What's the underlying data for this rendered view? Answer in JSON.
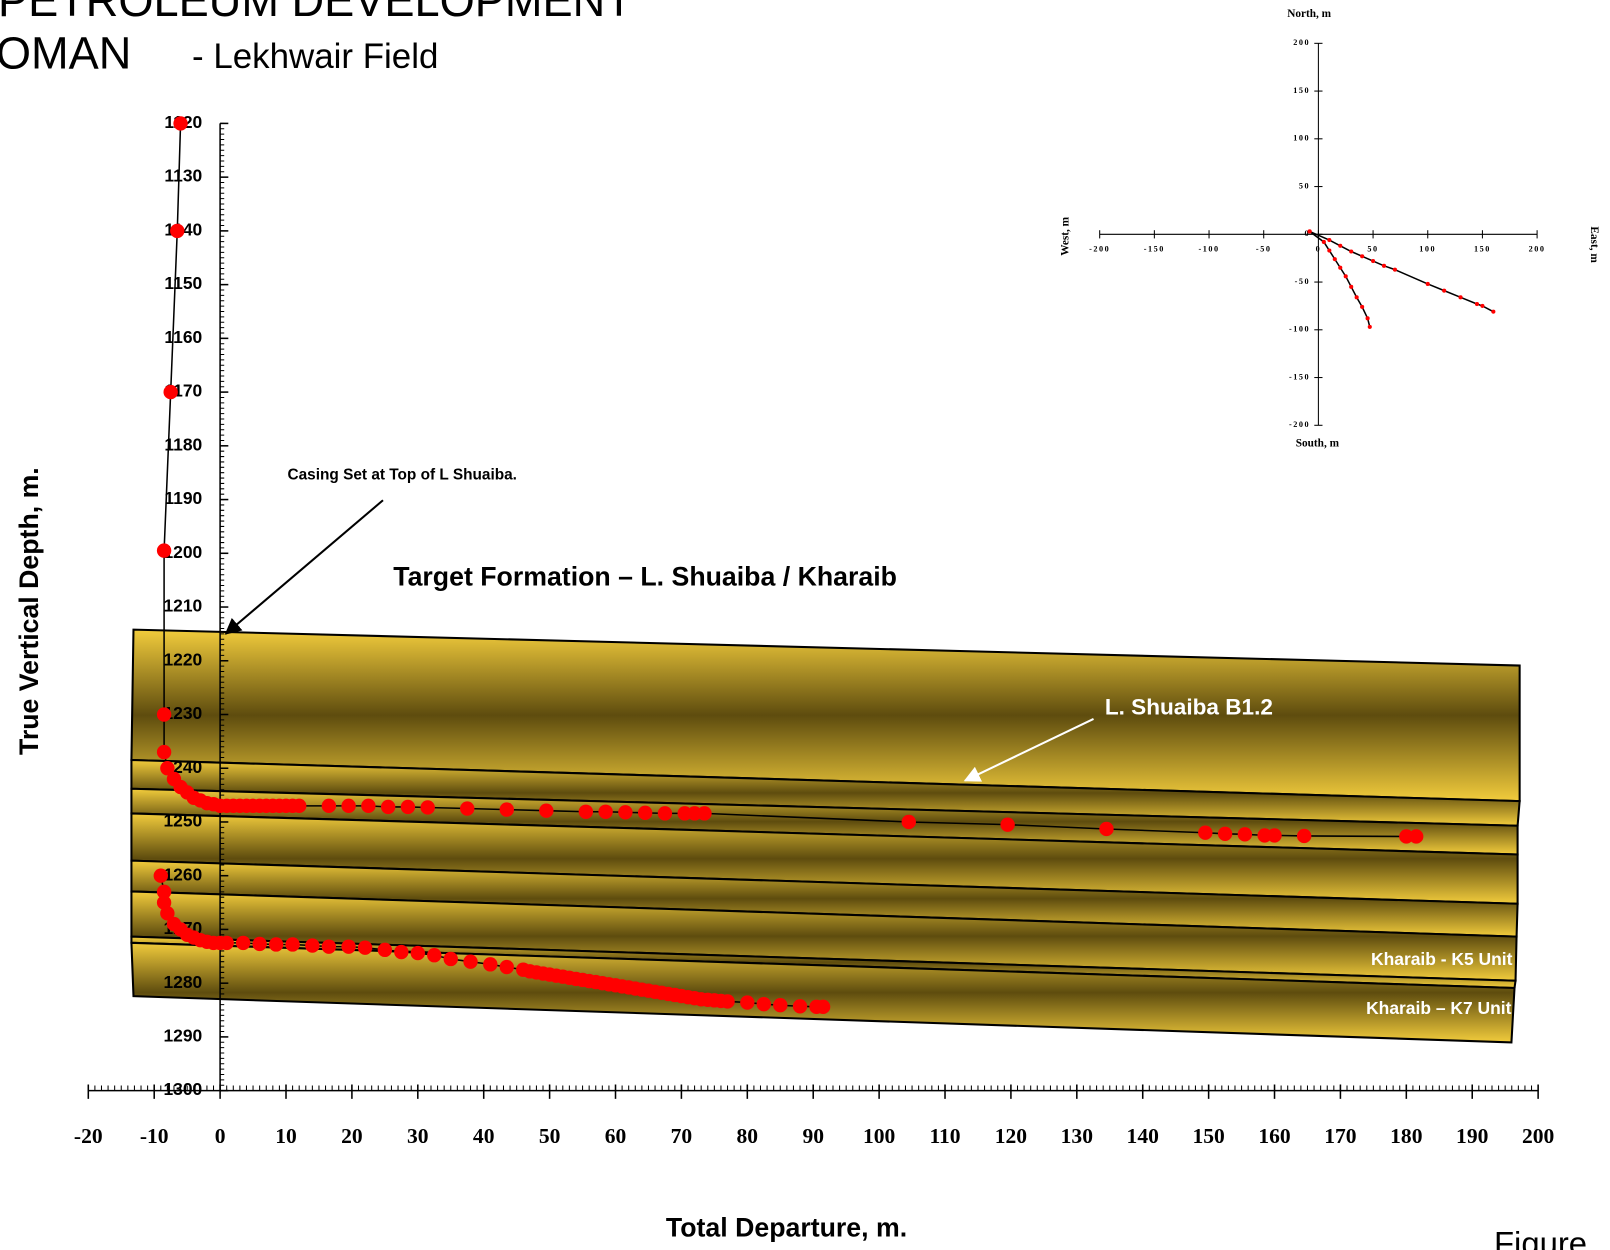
{
  "header": {
    "line1": "PETROLEUM DEVELOPMENT",
    "line2": "OMAN",
    "line3": "- Lekhwair Field"
  },
  "footer": "Figure",
  "chart_data": [
    {
      "type": "scatter",
      "x_label": "Total Departure, m.",
      "y_label": "True Vertical Depth, m.",
      "annotations": [
        "Casing Set at Top of L Shuaiba.",
        "Target Formation – L. Shuaiba / Kharaib",
        "L. Shuaiba B1.2",
        "Kharaib - K5 Unit",
        "Kharaib – K7 Unit"
      ],
      "xlim": [
        -20,
        200
      ],
      "ylim": [
        1120,
        1300
      ],
      "y_inverted": true,
      "xticks": [
        -20,
        -10,
        0,
        10,
        20,
        30,
        40,
        50,
        60,
        70,
        80,
        90,
        100,
        110,
        120,
        130,
        140,
        150,
        160,
        170,
        180,
        190,
        200
      ],
      "yticks": [
        1120,
        1130,
        1140,
        1150,
        1160,
        1170,
        1180,
        1190,
        1200,
        1210,
        1220,
        1230,
        1240,
        1250,
        1260,
        1270,
        1280,
        1290,
        1300
      ],
      "line_color": "#000000",
      "marker_color": "#ff0000",
      "series": [
        {
          "x": [
            -6,
            -6.5,
            -7.5,
            -8.5,
            -8.5,
            -8.5,
            -8,
            -7,
            -6,
            -5,
            -4,
            -3,
            -2,
            -1,
            0,
            1,
            2,
            3,
            4,
            5,
            6,
            7,
            8,
            9,
            10,
            11,
            12,
            16.5,
            19.5,
            22.5,
            25.5,
            28.5,
            31.5,
            37.5,
            43.5,
            49.5,
            55.5,
            58.5,
            61.5,
            64.5,
            67.5,
            70.5,
            72,
            73.5,
            104.5,
            119.5,
            134.5,
            149.5,
            152.5,
            155.5,
            158.5,
            160,
            164.5,
            180,
            181.5
          ],
          "values": [
            1120,
            1140,
            1170,
            1199.5,
            1230,
            1237,
            1240,
            1242,
            1243.5,
            1244.5,
            1245.5,
            1246,
            1246.5,
            1246.7,
            1247,
            1247,
            1247,
            1247,
            1247,
            1247,
            1247,
            1247,
            1247,
            1247,
            1247,
            1247,
            1247,
            1247,
            1247,
            1247,
            1247.2,
            1247.2,
            1247.3,
            1247.5,
            1247.7,
            1247.9,
            1248.1,
            1248.1,
            1248.2,
            1248.3,
            1248.4,
            1248.4,
            1248.4,
            1248.4,
            1250,
            1250.5,
            1251.3,
            1252,
            1252.2,
            1252.3,
            1252.5,
            1252.5,
            1252.6,
            1252.7,
            1252.7
          ]
        },
        {
          "x": [
            -9,
            -8.5,
            -8.5,
            -8,
            -7,
            -6,
            -5,
            -4,
            -3,
            -2,
            -1,
            0,
            1,
            3.5,
            6,
            8.5,
            11,
            14,
            16.5,
            19.5,
            22,
            25,
            27.5,
            30,
            32.5,
            35,
            38,
            41,
            43.5,
            46,
            47,
            48,
            49,
            50,
            51,
            52,
            53,
            54,
            55,
            56,
            57,
            58,
            59,
            60,
            61,
            62,
            63,
            64,
            65,
            66,
            67,
            68,
            69,
            70,
            71,
            72,
            73,
            74,
            75,
            76,
            77,
            80,
            82.5,
            85,
            88,
            90.5,
            91.5
          ],
          "values": [
            1260,
            1263,
            1265,
            1267,
            1269,
            1270,
            1271,
            1271.5,
            1272,
            1272.3,
            1272.5,
            1272.5,
            1272.5,
            1272.5,
            1272.7,
            1272.8,
            1272.8,
            1273,
            1273.2,
            1273.2,
            1273.4,
            1273.8,
            1274.2,
            1274.4,
            1274.8,
            1275.5,
            1276,
            1276.5,
            1277,
            1277.5,
            1277.8,
            1278,
            1278.2,
            1278.4,
            1278.6,
            1278.8,
            1279,
            1279.2,
            1279.4,
            1279.6,
            1279.8,
            1280,
            1280.2,
            1280.4,
            1280.6,
            1280.8,
            1281,
            1281.2,
            1281.4,
            1281.6,
            1281.8,
            1282,
            1282.2,
            1282.4,
            1282.6,
            1282.8,
            1283,
            1283.1,
            1283.2,
            1283.3,
            1283.4,
            1283.6,
            1283.9,
            1284.1,
            1284.3,
            1284.4,
            1284.4
          ]
        }
      ]
    },
    {
      "type": "scatter",
      "x_label_left": "West, m",
      "x_label_right": "East, m",
      "y_label_top": "North, m",
      "y_label_bottom": "South, m",
      "xlim": [
        -200,
        200
      ],
      "ylim": [
        -200,
        200
      ],
      "xticks": [
        -200,
        -150,
        -100,
        -50,
        0,
        50,
        100,
        150,
        200
      ],
      "yticks": [
        200,
        150,
        100,
        50,
        0,
        -50,
        -100,
        -150,
        -200
      ],
      "line_color": "#000000",
      "marker_color": "#ff0000",
      "series": [
        {
          "x": [
            -8,
            10,
            20,
            30,
            40,
            50,
            60,
            70,
            100,
            115,
            130,
            145,
            150,
            160
          ],
          "values": [
            3,
            -6,
            -12,
            -18,
            -23,
            -28,
            -33,
            -37,
            -52,
            -59,
            -66,
            -73,
            -75,
            -81
          ]
        },
        {
          "x": [
            -8,
            5,
            10,
            15,
            20,
            25,
            30,
            35,
            40,
            45,
            47
          ],
          "values": [
            3,
            -8,
            -17,
            -26,
            -35,
            -44,
            -55,
            -66,
            -76,
            -88,
            -97
          ]
        }
      ]
    }
  ]
}
